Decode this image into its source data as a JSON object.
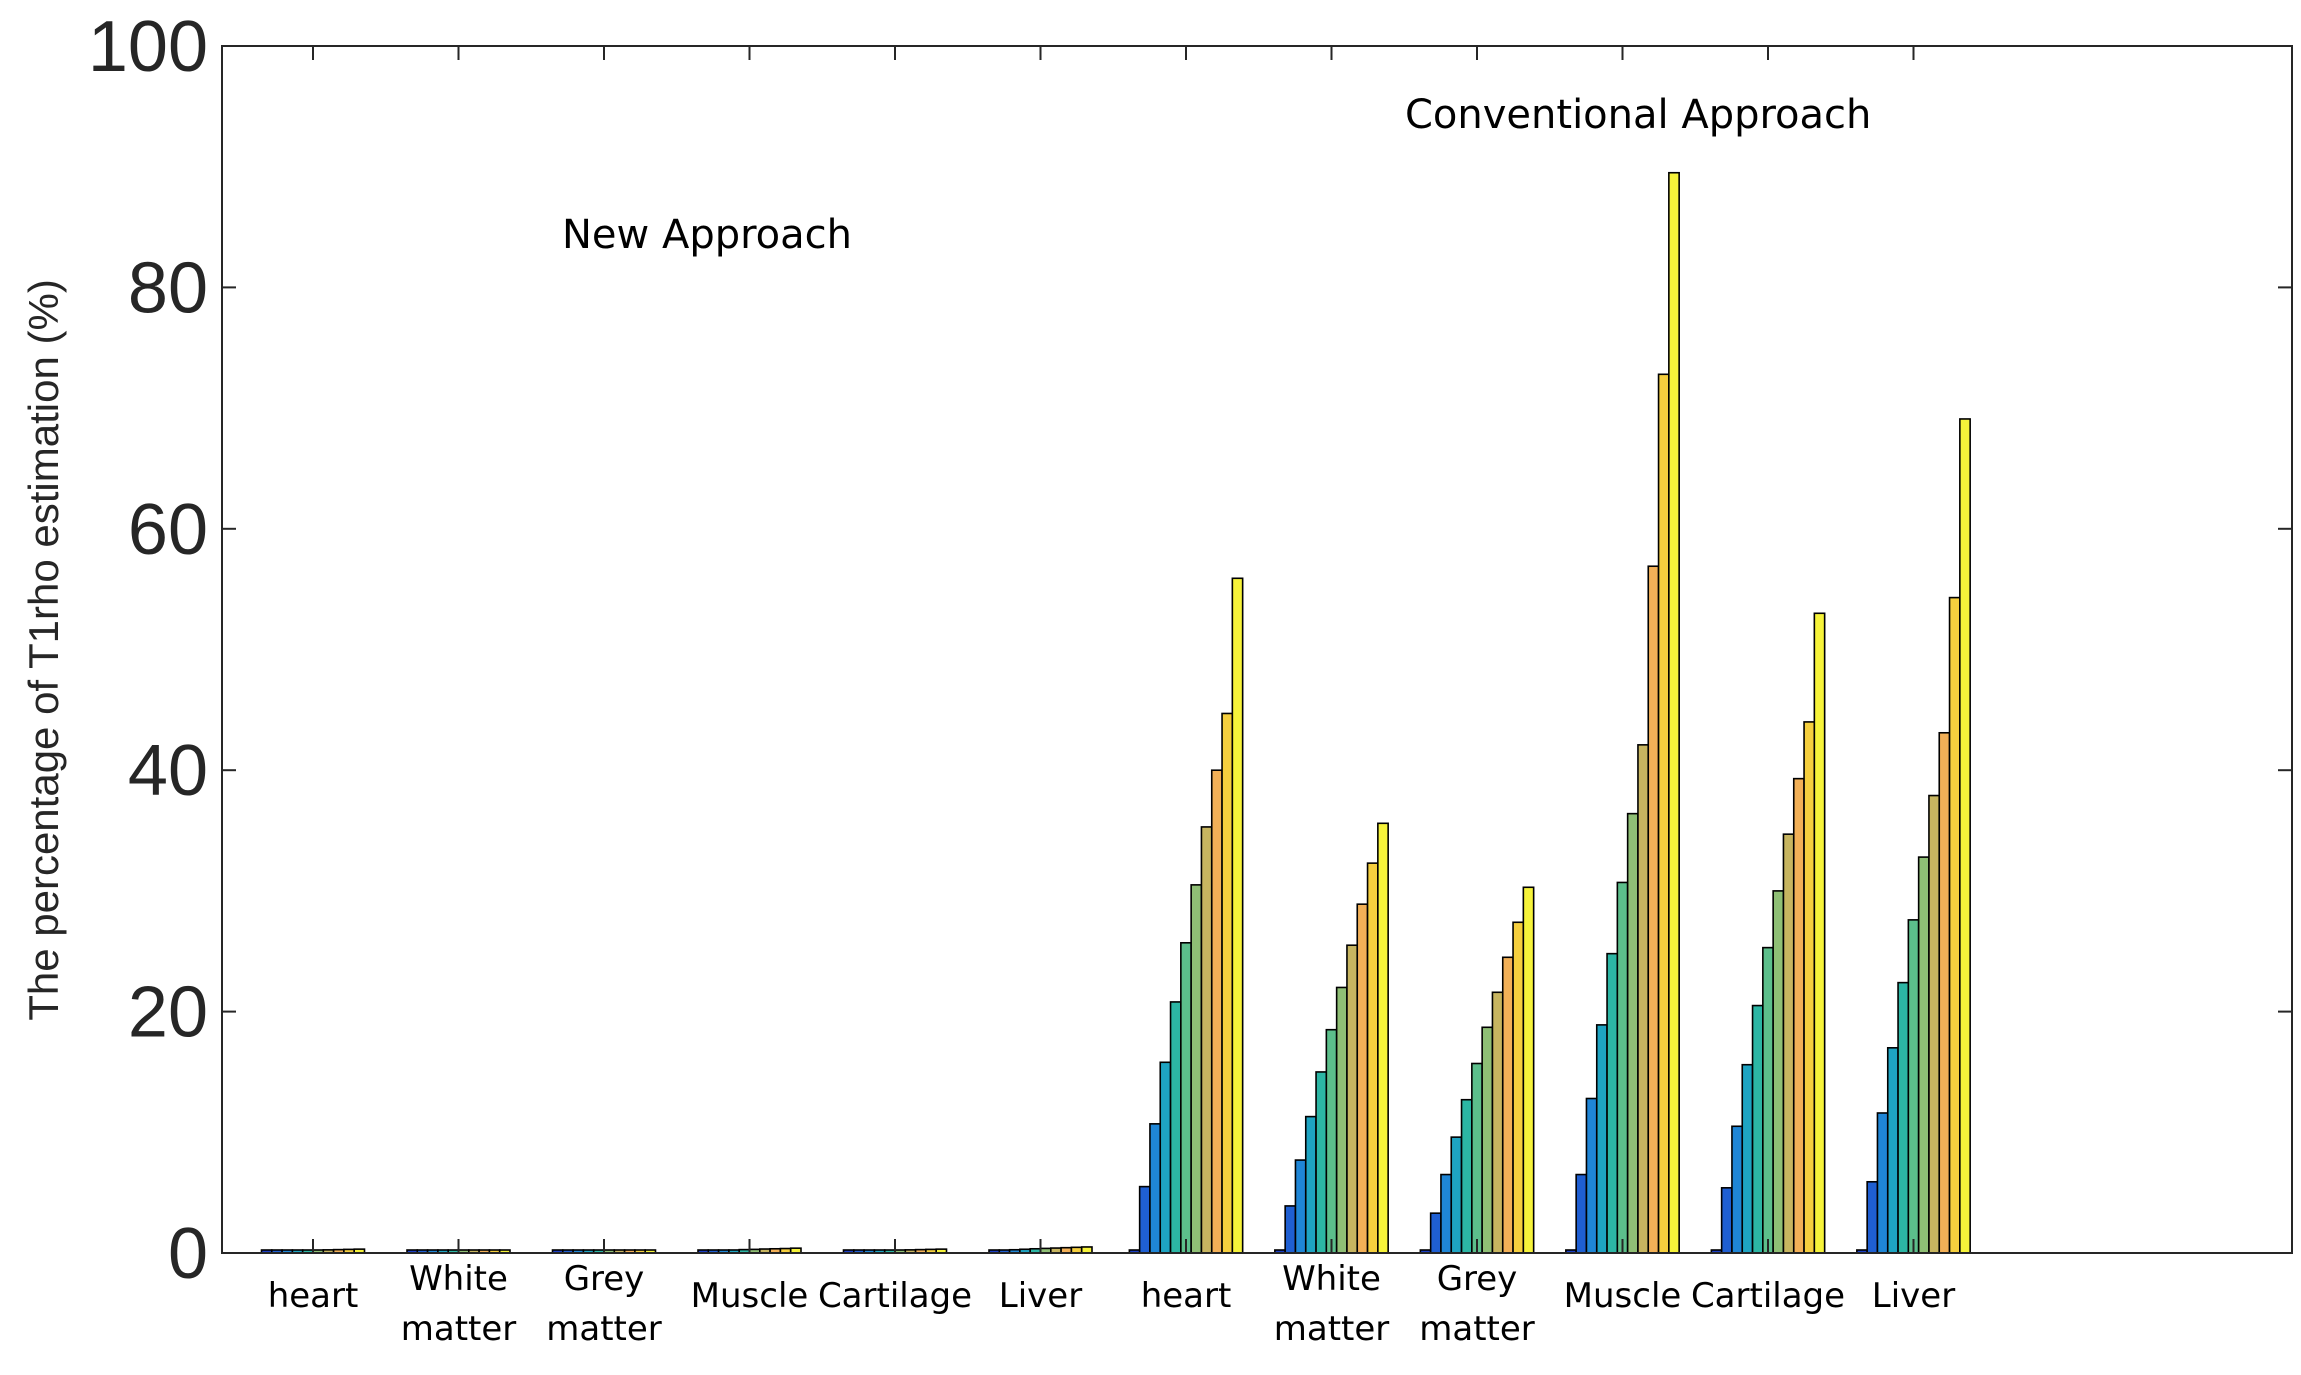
{
  "chart_data": {
    "type": "bar",
    "title": "",
    "xlabel": "",
    "ylabel": "The percentage of T1rho estimation (%)",
    "ylim": [
      0,
      100
    ],
    "yticks": [
      0,
      20,
      40,
      60,
      80,
      100
    ],
    "grid": false,
    "legend": "none",
    "annotations": [
      {
        "id": "new",
        "text": "New Approach"
      },
      {
        "id": "conv",
        "text": "Conventional Approach"
      }
    ],
    "groups": [
      {
        "label": [
          "heart"
        ],
        "values": [
          0.1,
          0.15,
          0.18,
          0.2,
          0.22,
          0.24,
          0.26,
          0.28,
          0.3,
          0.32
        ]
      },
      {
        "label": [
          "White",
          "matter"
        ],
        "values": [
          0.06,
          0.08,
          0.09,
          0.1,
          0.11,
          0.12,
          0.13,
          0.14,
          0.15,
          0.16
        ]
      },
      {
        "label": [
          "Grey",
          "matter"
        ],
        "values": [
          0.04,
          0.05,
          0.06,
          0.07,
          0.08,
          0.08,
          0.09,
          0.1,
          0.1,
          0.11
        ]
      },
      {
        "label": [
          "Muscle"
        ],
        "values": [
          0.12,
          0.18,
          0.22,
          0.25,
          0.28,
          0.3,
          0.33,
          0.35,
          0.37,
          0.4
        ]
      },
      {
        "label": [
          "Cartilage"
        ],
        "values": [
          0.1,
          0.14,
          0.17,
          0.2,
          0.22,
          0.24,
          0.26,
          0.28,
          0.3,
          0.32
        ]
      },
      {
        "label": [
          "Liver"
        ],
        "values": [
          0.15,
          0.22,
          0.27,
          0.31,
          0.35,
          0.38,
          0.41,
          0.44,
          0.47,
          0.5
        ]
      },
      {
        "label": [
          "heart"
        ],
        "values": [
          0.1,
          5.5,
          10.7,
          15.8,
          20.8,
          25.7,
          30.5,
          35.3,
          40.0,
          44.7,
          55.9
        ]
      },
      {
        "label": [
          "White",
          "matter"
        ],
        "values": [
          0.1,
          3.9,
          7.7,
          11.3,
          15.0,
          18.5,
          22.0,
          25.5,
          28.9,
          32.3,
          35.6
        ]
      },
      {
        "label": [
          "Grey",
          "matter"
        ],
        "values": [
          0.1,
          3.3,
          6.5,
          9.6,
          12.7,
          15.7,
          18.7,
          21.6,
          24.5,
          27.4,
          30.3
        ]
      },
      {
        "label": [
          "Muscle"
        ],
        "values": [
          0.1,
          6.5,
          12.8,
          18.9,
          24.8,
          30.7,
          36.4,
          42.1,
          56.9,
          72.8,
          89.5
        ]
      },
      {
        "label": [
          "Cartilage"
        ],
        "values": [
          0.1,
          5.4,
          10.5,
          15.6,
          20.5,
          25.3,
          30.0,
          34.7,
          39.3,
          44.0,
          53.0
        ]
      },
      {
        "label": [
          "Liver"
        ],
        "values": [
          0.1,
          5.9,
          11.6,
          17.0,
          22.4,
          27.6,
          32.8,
          37.9,
          43.1,
          54.3,
          69.1
        ]
      }
    ],
    "palette": [
      "#1b3fc4",
      "#1f5fd2",
      "#1f86d6",
      "#1ea4c2",
      "#2cb6a4",
      "#5cbf8b",
      "#8fbf75",
      "#c7b560",
      "#f2b057",
      "#f5cf3e",
      "#f6f33a"
    ]
  }
}
